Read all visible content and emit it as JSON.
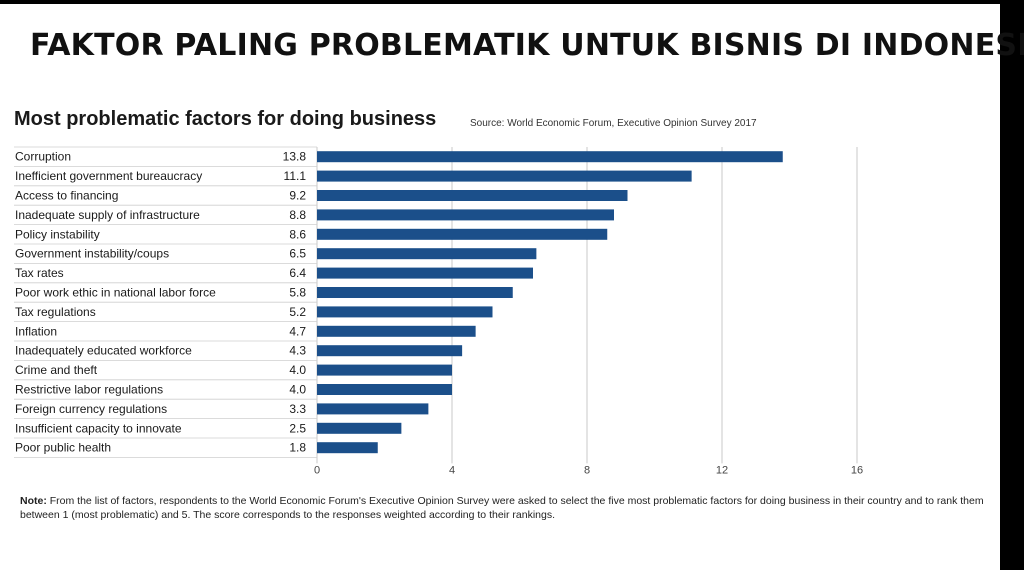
{
  "slide_title": "FAKTOR PALING PROBLEMATIK UNTUK BISNIS DI INDONESIA",
  "chart_data": {
    "type": "bar",
    "orientation": "horizontal",
    "title": "Most problematic factors for doing business",
    "source": "Source: World Economic Forum, Executive Opinion Survey 2017",
    "categories": [
      "Corruption",
      "Inefficient government bureaucracy",
      "Access to financing",
      "Inadequate supply of infrastructure",
      "Policy instability",
      "Government instability/coups",
      "Tax rates",
      "Poor work ethic in national labor force",
      "Tax regulations",
      "Inflation",
      "Inadequately educated workforce",
      "Crime and theft",
      "Restrictive labor regulations",
      "Foreign currency regulations",
      "Insufficient capacity to innovate",
      "Poor public health"
    ],
    "values": [
      13.8,
      11.1,
      9.2,
      8.8,
      8.6,
      6.5,
      6.4,
      5.8,
      5.2,
      4.7,
      4.3,
      4.0,
      4.0,
      3.3,
      2.5,
      1.8
    ],
    "value_labels": [
      "13.8",
      "11.1",
      "9.2",
      "8.8",
      "8.6",
      "6.5",
      "6.4",
      "5.8",
      "5.2",
      "4.7",
      "4.3",
      "4.0",
      "4.0",
      "3.3",
      "2.5",
      "1.8"
    ],
    "xlim": [
      0,
      16
    ],
    "xticks": [
      "0",
      "4",
      "8",
      "12",
      "16"
    ],
    "grid": true,
    "bar_color": "#1b4f8a"
  },
  "note": {
    "label": "Note:",
    "text": " From the list of factors, respondents to the World Economic Forum's Executive Opinion Survey were asked to select the five most problematic factors for doing business in their country and to rank them between 1 (most problematic) and 5. The score corresponds to the responses weighted according to their rankings."
  }
}
